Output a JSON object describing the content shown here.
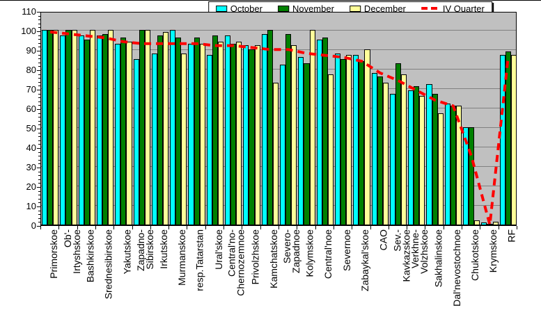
{
  "chart_data": {
    "type": "bar",
    "title": "",
    "xlabel": "",
    "ylabel": "%",
    "ylim": [
      0,
      110
    ],
    "ytick_step": 10,
    "grid": true,
    "legend_position": "top-center",
    "plot_bg_color": "#C0C0C0",
    "grid_color": "#808080",
    "categories": [
      {
        "name": "Primorskoe",
        "lines": [
          "Primorskoe"
        ]
      },
      {
        "name": "Ob'-Irtyshskoe",
        "lines": [
          "Ob'-",
          "Irtyshskoe"
        ]
      },
      {
        "name": "Bashkirskoe",
        "lines": [
          "Bashkirskoe"
        ]
      },
      {
        "name": "Srednesibirskoe",
        "lines": [
          "Srednesibirskoe"
        ]
      },
      {
        "name": "Yakutskoe",
        "lines": [
          "Yakutskoe"
        ]
      },
      {
        "name": "Zapadno-Sibirskoe",
        "lines": [
          "Zapadno-",
          "Sibirskoe"
        ]
      },
      {
        "name": "Irkutskoe",
        "lines": [
          "Irkutskoe"
        ]
      },
      {
        "name": "Murmanskoe",
        "lines": [
          "Murmanskoe"
        ]
      },
      {
        "name": "resp.Tatarstan",
        "lines": [
          "resp.Tatarstan"
        ]
      },
      {
        "name": "Ural'skoe",
        "lines": [
          "Ural'skoe"
        ]
      },
      {
        "name": "Central'no-Chernozemnoe",
        "lines": [
          "Central'no-",
          "Chernozemnoe"
        ]
      },
      {
        "name": "Privolzhskoe",
        "lines": [
          "Privolzhskoe"
        ]
      },
      {
        "name": "Kamchatskoe",
        "lines": [
          "Kamchatskoe"
        ]
      },
      {
        "name": "Severo-Zapadnoe",
        "lines": [
          "Severo-",
          "Zapadnoe"
        ]
      },
      {
        "name": "Kolymskoe",
        "lines": [
          "Kolymskoe"
        ]
      },
      {
        "name": "Central'noe",
        "lines": [
          "Central'noe"
        ]
      },
      {
        "name": "Severnoe",
        "lines": [
          "Severnoe"
        ]
      },
      {
        "name": "Zabaykal'skoe",
        "lines": [
          "Zabaykal'skoe"
        ]
      },
      {
        "name": "CAO",
        "lines": [
          "CAO"
        ]
      },
      {
        "name": "Sev.-Kavkazskoe",
        "lines": [
          "Sev.-",
          "Kavkazskoe"
        ]
      },
      {
        "name": "Verkhne-Volzhskoe",
        "lines": [
          "Verkhne-",
          "Volzhskoe"
        ]
      },
      {
        "name": "Sakhalinskoe",
        "lines": [
          "Sakhalinskoe"
        ]
      },
      {
        "name": "Dal'nevostochnoe",
        "lines": [
          "Dal'nevostochnoe"
        ]
      },
      {
        "name": "Chukotskoe",
        "lines": [
          "Chukotskoe"
        ]
      },
      {
        "name": "Krymskoe",
        "lines": [
          "Krymskoe"
        ]
      },
      {
        "name": "RF",
        "lines": [
          "RF"
        ]
      }
    ],
    "series": [
      {
        "name": "October",
        "color": "#00FFFF",
        "values": [
          100,
          97,
          97,
          97,
          93,
          85,
          88,
          100,
          93,
          87,
          97,
          92,
          98,
          82,
          86,
          95,
          88,
          87,
          78,
          67,
          69,
          72,
          62,
          50,
          1,
          87
        ]
      },
      {
        "name": "November",
        "color": "#008000",
        "values": [
          100,
          100,
          95,
          98,
          96,
          100,
          97,
          96,
          96,
          97,
          93,
          90,
          100,
          98,
          83,
          96,
          85,
          84,
          76,
          83,
          71,
          67,
          61,
          50,
          0.5,
          89
        ]
      },
      {
        "name": "December",
        "color": "#FFFF99",
        "values": [
          100,
          100,
          100,
          100,
          94,
          100,
          99,
          88,
          93,
          94,
          94,
          92,
          73,
          92,
          100,
          77,
          87,
          90,
          73,
          77,
          66,
          57,
          61,
          2,
          1.5,
          87
        ]
      }
    ],
    "line_series": {
      "name": "IV Quarter",
      "color": "#FF0000",
      "style": "dashed",
      "values": [
        100,
        99,
        98,
        97,
        95,
        94,
        94,
        94,
        94,
        93,
        93,
        92,
        91,
        91,
        89,
        88,
        87,
        85,
        79,
        75,
        70,
        65,
        62,
        36,
        1,
        87
      ]
    }
  }
}
